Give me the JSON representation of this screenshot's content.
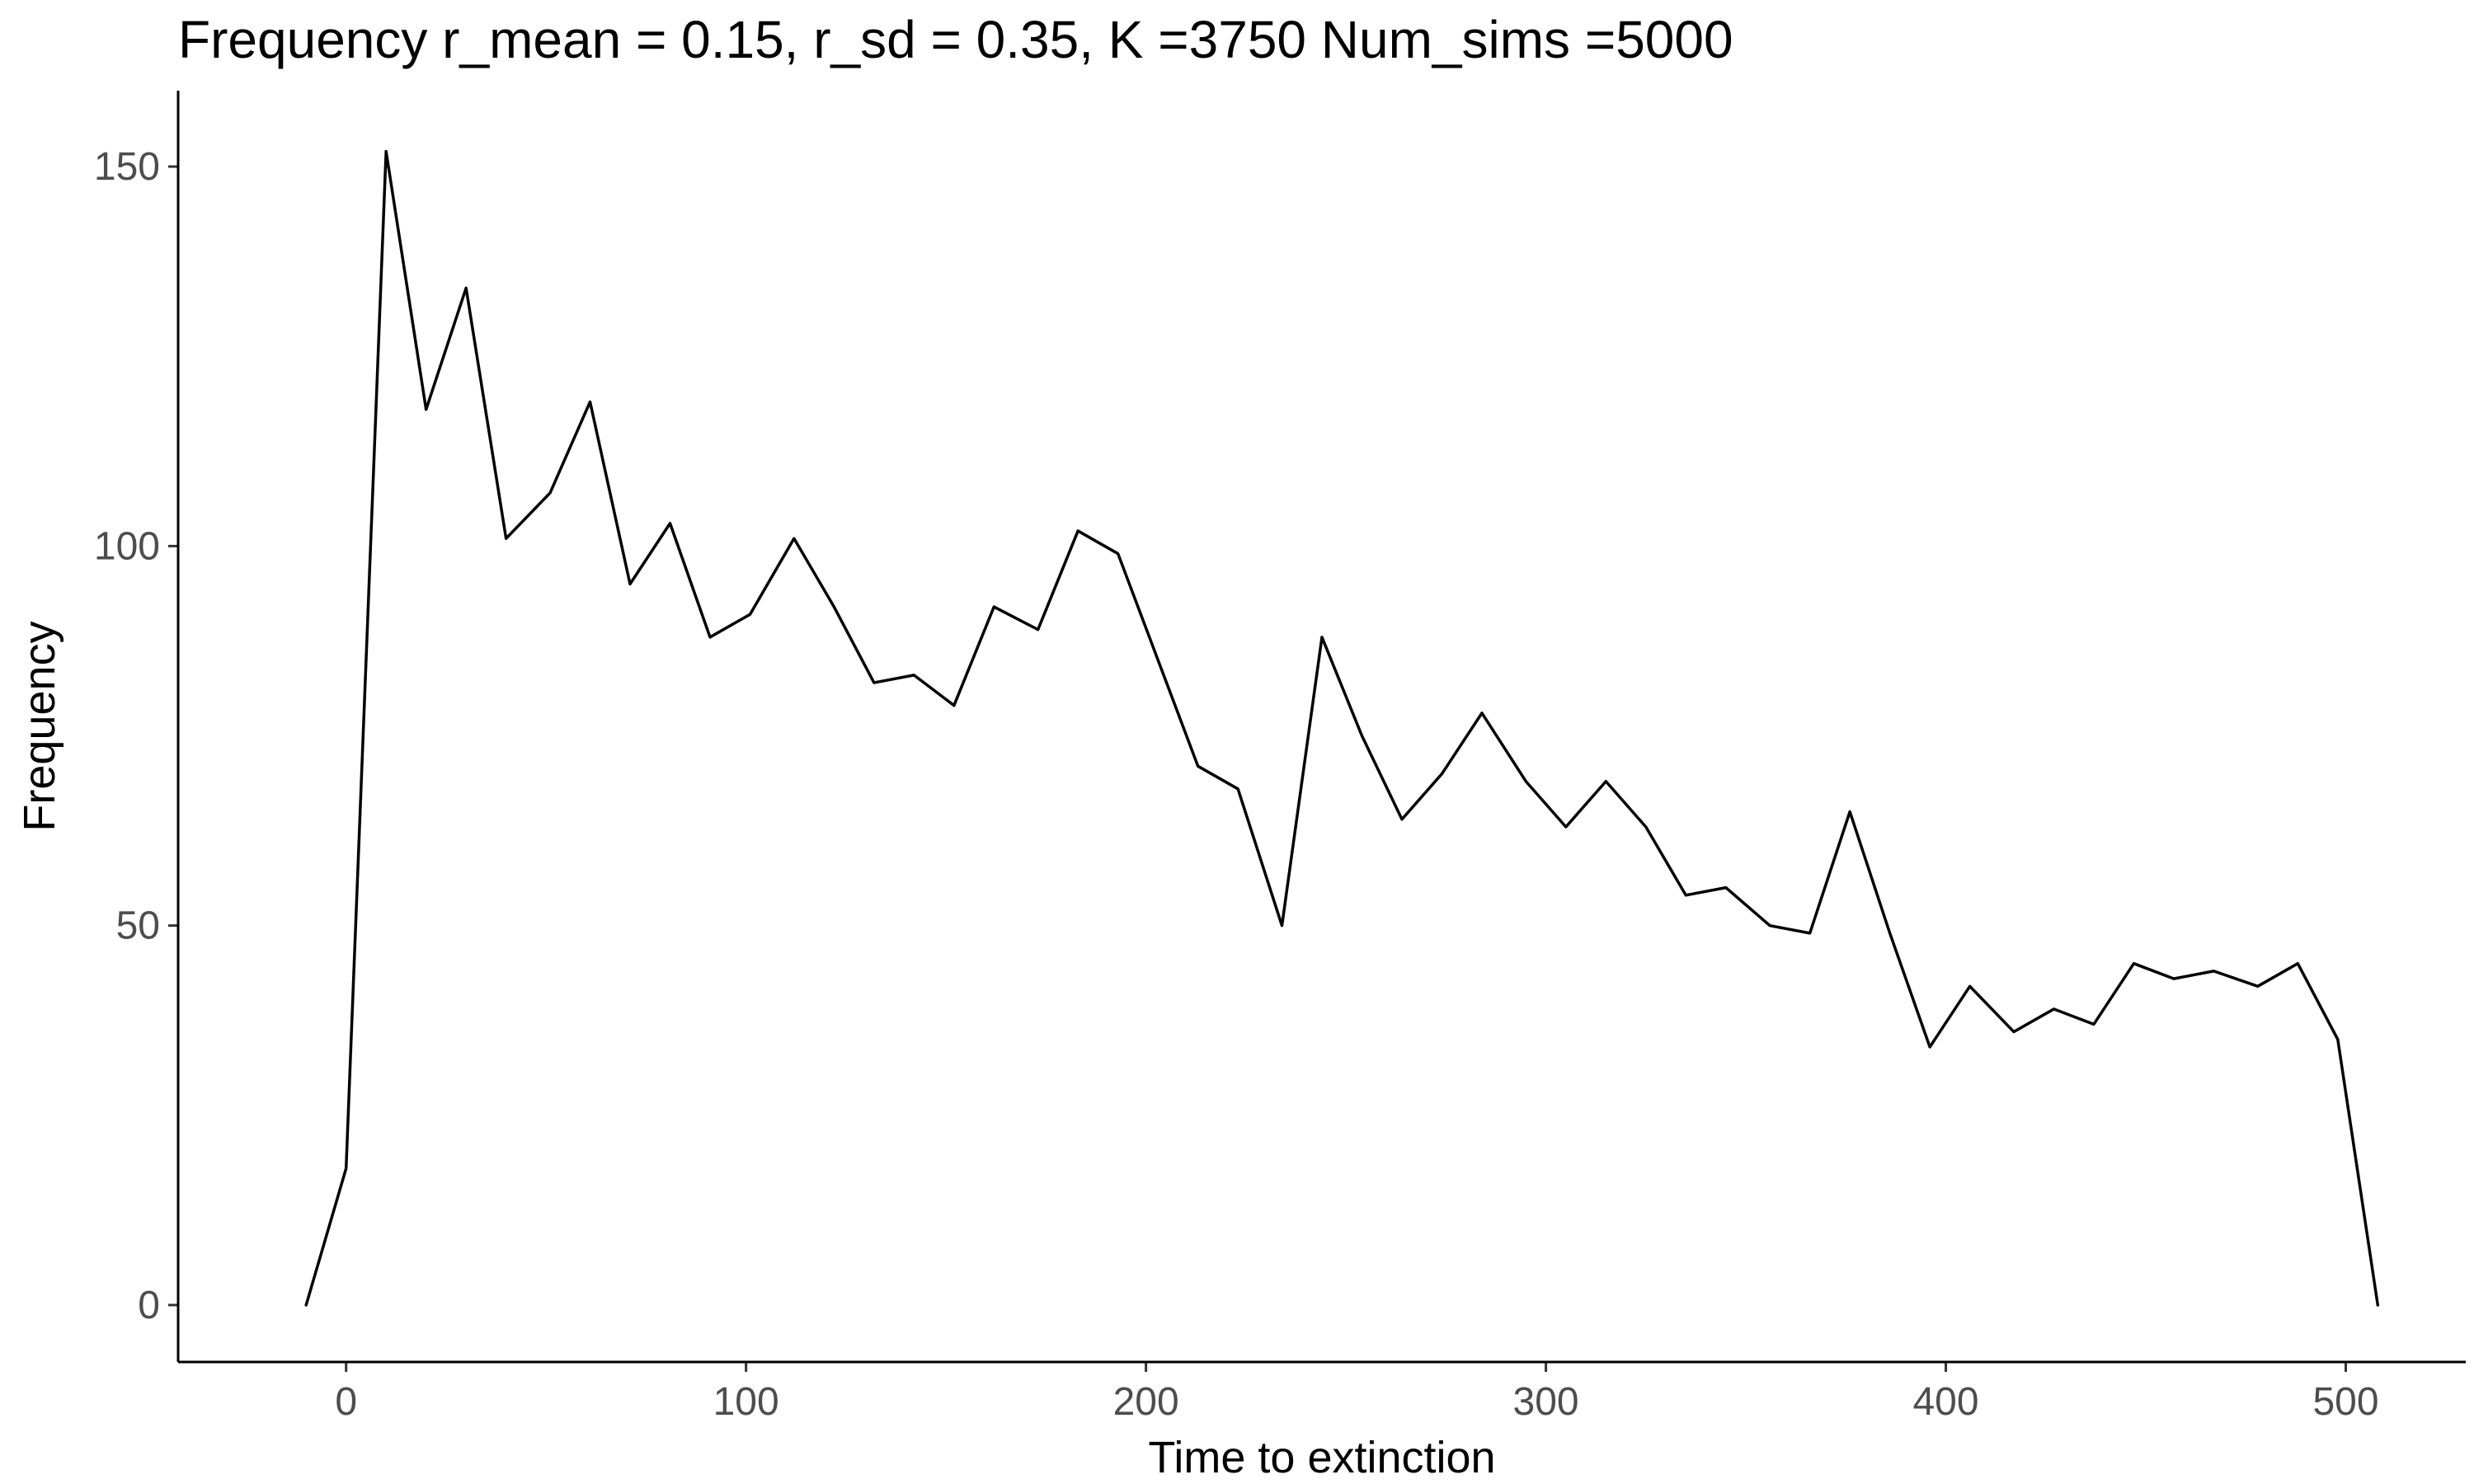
{
  "chart_data": {
    "type": "line",
    "title": "Frequency r_mean = 0.15, r_sd = 0.35, K =3750 Num_sims =5000",
    "xlabel": "Time to extinction",
    "ylabel": "Frequency",
    "xlim": [
      -42,
      530
    ],
    "ylim": [
      -7.5,
      160
    ],
    "xticks": [
      0,
      100,
      200,
      300,
      400,
      500
    ],
    "yticks": [
      0,
      50,
      100,
      150
    ],
    "xtick_labels": [
      "0",
      "100",
      "200",
      "300",
      "400",
      "500"
    ],
    "ytick_labels": [
      "0",
      "50",
      "100",
      "150"
    ],
    "grid": false,
    "legend": "none",
    "line_color": "#000000",
    "series": [
      {
        "x": [
          -10,
          0,
          10,
          20,
          30,
          40,
          51,
          61,
          71,
          81,
          91,
          101,
          112,
          122,
          132,
          142,
          152,
          162,
          173,
          183,
          193,
          203,
          213,
          223,
          234,
          244,
          254,
          264,
          274,
          284,
          295,
          305,
          315,
          325,
          335,
          345,
          356,
          366,
          376,
          386,
          396,
          406,
          417,
          427,
          437,
          447,
          457,
          467,
          478,
          488,
          498,
          508
        ],
        "y": [
          0,
          18,
          152,
          118,
          134,
          101,
          107,
          119,
          95,
          103,
          88,
          91,
          101,
          92,
          82,
          83,
          79,
          92,
          89,
          102,
          99,
          85,
          71,
          68,
          50,
          88,
          75,
          64,
          70,
          78,
          69,
          63,
          69,
          63,
          54,
          55,
          50,
          49,
          65,
          49,
          34,
          42,
          36,
          39,
          37,
          45,
          43,
          44,
          42,
          45,
          35,
          0
        ]
      }
    ]
  }
}
